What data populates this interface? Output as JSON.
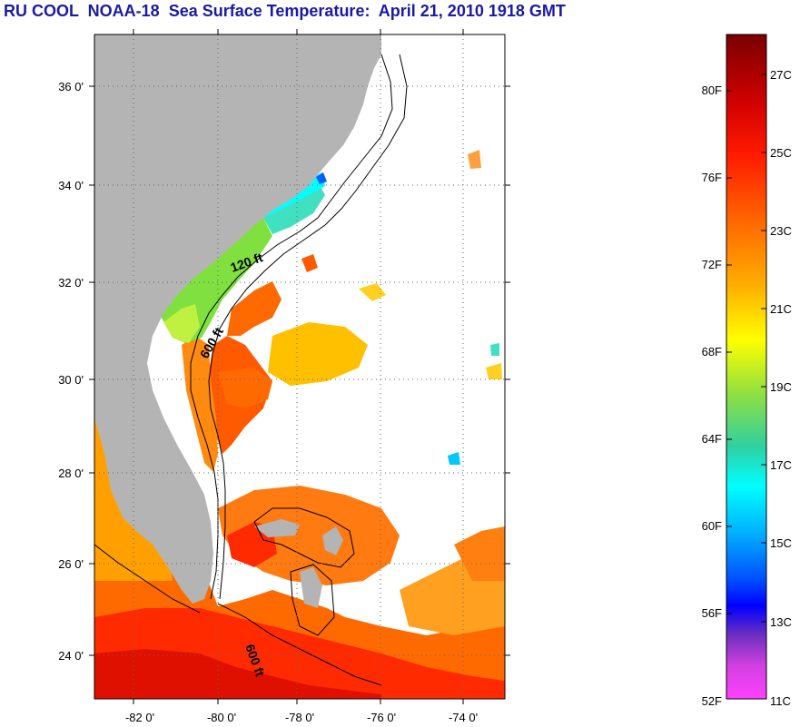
{
  "title": "RU COOL  NOAA-18  Sea Surface Temperature:  April 21, 2010 1918 GMT",
  "map": {
    "lat_labels": [
      "36 0'",
      "34 0'",
      "32 0'",
      "30 0'",
      "28 0'",
      "26 0'",
      "24 0'"
    ],
    "lon_labels": [
      "-82 0'",
      "-80 0'",
      "-78 0'",
      "-76 0'",
      "-74 0'"
    ],
    "contour_labels": [
      "120 ft",
      "600 ft",
      "600 ft"
    ],
    "colors": {
      "land": "#b4b4b4",
      "ocean_nodata": "#ffffff",
      "grid": "#000000"
    }
  },
  "colorbar": {
    "fahrenheit_labels": [
      "80F",
      "76F",
      "72F",
      "68F",
      "64F",
      "60F",
      "56F",
      "52F"
    ],
    "celsius_labels": [
      "27C",
      "25C",
      "23C",
      "21C",
      "19C",
      "17C",
      "15C",
      "13C",
      "11C"
    ],
    "colors": [
      "#7a0000",
      "#ff0000",
      "#ff7a00",
      "#ffff00",
      "#30d030",
      "#00ffff",
      "#0090ff",
      "#0000ff",
      "#8030d0",
      "#ff40ff"
    ]
  }
}
